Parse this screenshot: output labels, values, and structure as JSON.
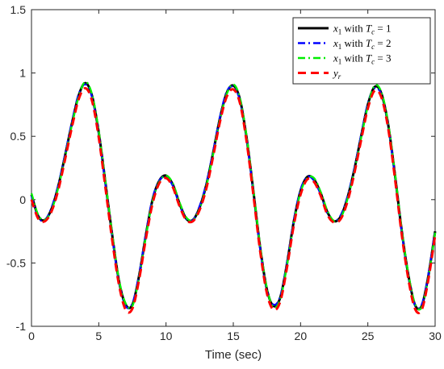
{
  "chart_data": {
    "type": "line",
    "title": "",
    "xlabel": "Time (sec)",
    "ylabel": "",
    "xlim": [
      0,
      30
    ],
    "ylim": [
      -1,
      1.5
    ],
    "xticks": [
      0,
      5,
      10,
      15,
      20,
      25,
      30
    ],
    "yticks": [
      -1,
      -0.5,
      0,
      0.5,
      1,
      1.5
    ],
    "xtick_labels": [
      "0",
      "5",
      "10",
      "15",
      "20",
      "25",
      "30"
    ],
    "ytick_labels": [
      "-1",
      "-0.5",
      "0",
      "0.5",
      "1",
      "1.5"
    ],
    "grid": false,
    "legend_position": "top-right",
    "x": [
      0,
      0.5,
      1,
      1.5,
      2,
      2.5,
      3,
      3.5,
      4,
      4.5,
      5,
      5.5,
      6,
      6.5,
      7,
      7.5,
      8,
      8.5,
      9,
      9.5,
      10,
      10.5,
      11,
      11.5,
      12,
      12.5,
      13,
      13.5,
      14,
      14.5,
      15,
      15.5,
      16,
      16.5,
      17,
      17.5,
      18,
      18.5,
      19,
      19.5,
      20,
      20.5,
      21,
      21.5,
      22,
      22.5,
      23,
      23.5,
      24,
      24.5,
      25,
      25.5,
      26,
      26.5,
      27,
      27.5,
      28,
      28.5,
      29,
      29.5,
      30
    ],
    "series": [
      {
        "name": "x1 with Tc = 1",
        "color": "#000000",
        "style": "solid",
        "values": [
          0.04,
          -0.13,
          -0.16,
          -0.07,
          0.11,
          0.35,
          0.6,
          0.82,
          0.92,
          0.82,
          0.53,
          0.13,
          -0.28,
          -0.64,
          -0.83,
          -0.83,
          -0.6,
          -0.28,
          0.0,
          0.15,
          0.19,
          0.12,
          -0.03,
          -0.15,
          -0.16,
          -0.06,
          0.12,
          0.37,
          0.64,
          0.84,
          0.9,
          0.79,
          0.48,
          0.06,
          -0.38,
          -0.71,
          -0.84,
          -0.77,
          -0.5,
          -0.17,
          0.07,
          0.18,
          0.16,
          0.05,
          -0.1,
          -0.17,
          -0.13,
          0.02,
          0.24,
          0.5,
          0.75,
          0.89,
          0.84,
          0.6,
          0.21,
          -0.23,
          -0.59,
          -0.83,
          -0.84,
          -0.6,
          -0.25
        ]
      },
      {
        "name": "x1 with Tc = 2",
        "color": "#0000ff",
        "style": "dashdot",
        "values": [
          0.03,
          -0.14,
          -0.16,
          -0.06,
          0.12,
          0.36,
          0.61,
          0.83,
          0.91,
          0.81,
          0.52,
          0.12,
          -0.29,
          -0.65,
          -0.84,
          -0.82,
          -0.59,
          -0.27,
          0.01,
          0.15,
          0.18,
          0.11,
          -0.04,
          -0.15,
          -0.16,
          -0.05,
          0.13,
          0.38,
          0.65,
          0.85,
          0.89,
          0.78,
          0.47,
          0.05,
          -0.39,
          -0.72,
          -0.83,
          -0.76,
          -0.49,
          -0.16,
          0.08,
          0.18,
          0.15,
          0.04,
          -0.11,
          -0.17,
          -0.12,
          0.03,
          0.25,
          0.51,
          0.76,
          0.88,
          0.83,
          0.59,
          0.2,
          -0.24,
          -0.6,
          -0.83,
          -0.83,
          -0.59,
          -0.24
        ]
      },
      {
        "name": "x1 with Tc = 3",
        "color": "#00ee00",
        "style": "dashdot",
        "values": [
          0.05,
          -0.12,
          -0.16,
          -0.08,
          0.1,
          0.34,
          0.59,
          0.81,
          0.93,
          0.83,
          0.54,
          0.14,
          -0.27,
          -0.63,
          -0.82,
          -0.84,
          -0.61,
          -0.29,
          -0.01,
          0.14,
          0.19,
          0.13,
          -0.02,
          -0.14,
          -0.16,
          -0.07,
          0.11,
          0.36,
          0.63,
          0.83,
          0.91,
          0.8,
          0.49,
          0.07,
          -0.37,
          -0.7,
          -0.85,
          -0.78,
          -0.51,
          -0.18,
          0.06,
          0.17,
          0.17,
          0.06,
          -0.09,
          -0.17,
          -0.14,
          0.01,
          0.23,
          0.49,
          0.74,
          0.9,
          0.85,
          0.61,
          0.22,
          -0.22,
          -0.58,
          -0.82,
          -0.85,
          -0.61,
          -0.26
        ]
      },
      {
        "name": "yr",
        "color": "#ff0000",
        "style": "dashed",
        "values": [
          0.0,
          -0.15,
          -0.17,
          -0.09,
          0.08,
          0.32,
          0.57,
          0.79,
          0.88,
          0.78,
          0.49,
          0.09,
          -0.32,
          -0.67,
          -0.87,
          -0.86,
          -0.63,
          -0.31,
          -0.03,
          0.13,
          0.17,
          0.1,
          -0.05,
          -0.16,
          -0.17,
          -0.08,
          0.09,
          0.34,
          0.61,
          0.81,
          0.87,
          0.76,
          0.45,
          0.03,
          -0.41,
          -0.74,
          -0.87,
          -0.8,
          -0.53,
          -0.2,
          0.04,
          0.16,
          0.14,
          0.03,
          -0.12,
          -0.18,
          -0.15,
          -0.01,
          0.21,
          0.47,
          0.72,
          0.86,
          0.81,
          0.57,
          0.18,
          -0.26,
          -0.62,
          -0.86,
          -0.87,
          -0.63,
          -0.28
        ]
      }
    ],
    "legend": [
      {
        "var": "x",
        "sub": "1",
        "mid": " with ",
        "tvar": "T",
        "tsub": "c",
        "rel": " = ",
        "num": "1"
      },
      {
        "var": "x",
        "sub": "1",
        "mid": " with ",
        "tvar": "T",
        "tsub": "c",
        "rel": " = ",
        "num": "2"
      },
      {
        "var": "x",
        "sub": "1",
        "mid": " with ",
        "tvar": "T",
        "tsub": "c",
        "rel": " = ",
        "num": "3"
      },
      {
        "var": "y",
        "sub": "r",
        "mid": "",
        "tvar": "",
        "tsub": "",
        "rel": "",
        "num": ""
      }
    ]
  }
}
